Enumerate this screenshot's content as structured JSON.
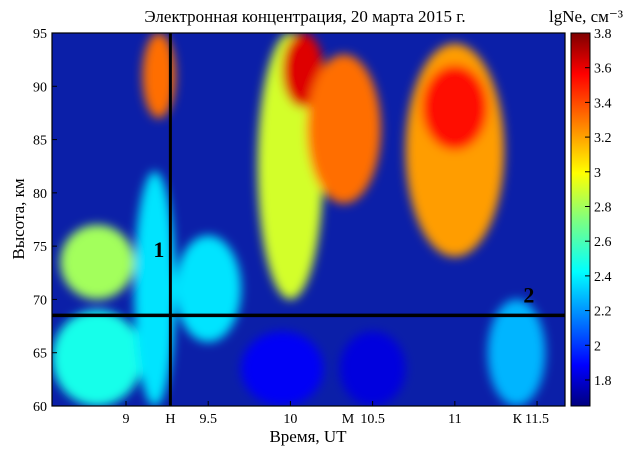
{
  "chart_data": {
    "type": "heatmap",
    "title": "Электронная концентрация, 20 марта 2015 г.",
    "xlabel": "Время, UT",
    "ylabel": "Высота, км",
    "xlim": [
      8.55,
      11.67
    ],
    "ylim": [
      60,
      95
    ],
    "x_ticks": [
      9,
      9.5,
      10,
      10.5,
      11,
      11.5
    ],
    "x_tick_labels": [
      "9",
      "9.5",
      "10",
      "10.5",
      "11",
      "11.5"
    ],
    "y_ticks": [
      60,
      65,
      70,
      75,
      80,
      85,
      90,
      95
    ],
    "y_tick_labels": [
      "60",
      "65",
      "70",
      "75",
      "80",
      "85",
      "90",
      "95"
    ],
    "x_markers": [
      {
        "label": "Н",
        "x": 9.27
      },
      {
        "label": "М",
        "x": 10.35
      },
      {
        "label": "К",
        "x": 11.38
      }
    ],
    "vertical_line_x": 9.27,
    "horizontal_line_y": 68.5,
    "annotations": [
      {
        "text": "1",
        "x": 9.2,
        "y": 74
      },
      {
        "text": "2",
        "x": 11.45,
        "y": 69.7
      }
    ],
    "colorbar": {
      "label": "lgNe, см⁻³",
      "range": [
        1.65,
        3.8
      ],
      "ticks": [
        1.8,
        2,
        2.2,
        2.4,
        2.6,
        2.8,
        3,
        3.2,
        3.4,
        3.6,
        3.8
      ],
      "tick_labels": [
        "1.8",
        "2",
        "2.2",
        "2.4",
        "2.6",
        "2.8",
        "3",
        "3.2",
        "3.4",
        "3.6",
        "3.8"
      ],
      "colormap": "jet"
    },
    "regions": [
      {
        "x": [
          8.55,
          9.1
        ],
        "y": [
          60,
          69
        ],
        "value": 2.5
      },
      {
        "x": [
          8.6,
          9.05
        ],
        "y": [
          70,
          77
        ],
        "value": 2.8
      },
      {
        "x": [
          9.05,
          9.3
        ],
        "y": [
          60,
          82
        ],
        "value": 2.4
      },
      {
        "x": [
          9.3,
          9.7
        ],
        "y": [
          66,
          76
        ],
        "value": 2.4
      },
      {
        "x": [
          9.7,
          10.2
        ],
        "y": [
          60,
          67
        ],
        "value": 1.9
      },
      {
        "x": [
          9.8,
          10.2
        ],
        "y": [
          70,
          95
        ],
        "value": 2.9
      },
      {
        "x": [
          9.95,
          10.2
        ],
        "y": [
          88,
          95
        ],
        "value": 3.6
      },
      {
        "x": [
          10.1,
          10.55
        ],
        "y": [
          79,
          93
        ],
        "value": 3.3
      },
      {
        "x": [
          10.3,
          10.7
        ],
        "y": [
          60,
          67
        ],
        "value": 1.85
      },
      {
        "x": [
          10.7,
          11.3
        ],
        "y": [
          74,
          94
        ],
        "value": 3.2
      },
      {
        "x": [
          10.8,
          11.2
        ],
        "y": [
          84,
          92
        ],
        "value": 3.5
      },
      {
        "x": [
          11.2,
          11.55
        ],
        "y": [
          60,
          70
        ],
        "value": 2.3
      },
      {
        "x": [
          9.1,
          9.3
        ],
        "y": [
          87,
          95
        ],
        "value": 3.3
      }
    ]
  }
}
